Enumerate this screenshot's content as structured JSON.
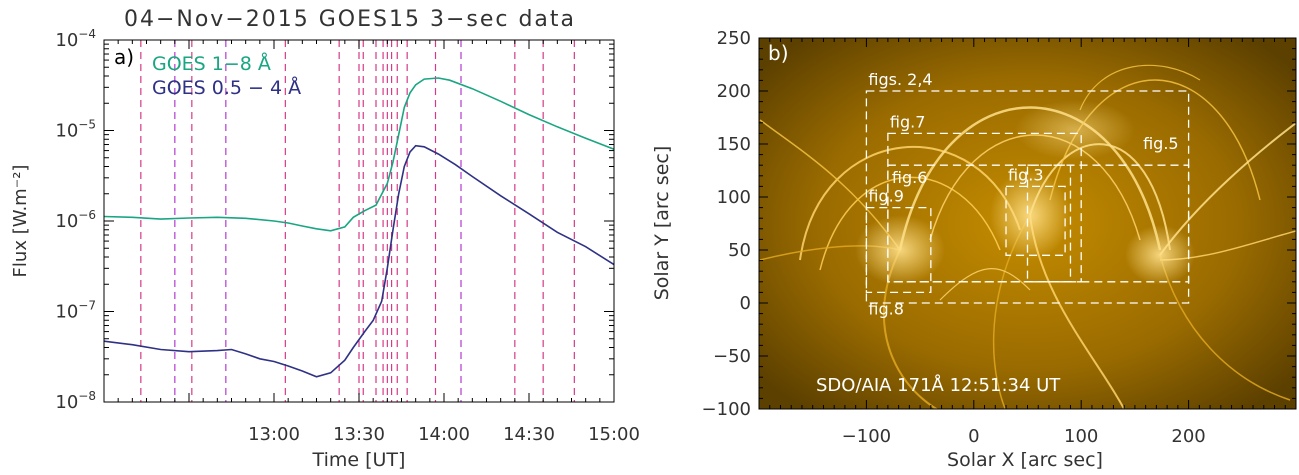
{
  "chart_data": [
    {
      "panel": "a",
      "type": "line",
      "title": "04−Nov−2015   GOES15 3−sec data",
      "panel_label": "a)",
      "xlabel": "Time [UT]",
      "ylabel": "Flux [W.m⁻²]",
      "x_unit": "minutes after 12:00 UT",
      "xlim": [
        0,
        180
      ],
      "ylim": [
        1e-08,
        0.0001
      ],
      "y_scale": "log",
      "x_ticks": [
        {
          "value": 60,
          "label": "13:00"
        },
        {
          "value": 90,
          "label": "13:30"
        },
        {
          "value": 120,
          "label": "14:00"
        },
        {
          "value": 150,
          "label": "14:30"
        },
        {
          "value": 180,
          "label": "15:00"
        }
      ],
      "y_ticks": [
        {
          "value": 1e-08,
          "base": "10",
          "exp": "−8"
        },
        {
          "value": 1e-07,
          "base": "10",
          "exp": "−7"
        },
        {
          "value": 1e-06,
          "base": "10",
          "exp": "−6"
        },
        {
          "value": 1e-05,
          "base": "10",
          "exp": "−5"
        },
        {
          "value": 0.0001,
          "base": "10",
          "exp": "−4"
        }
      ],
      "series": [
        {
          "name": "GOES  1−8 Å",
          "color": "#1aa583",
          "points": [
            [
              0,
              1.12e-06
            ],
            [
              10,
              1.1e-06
            ],
            [
              20,
              1.05e-06
            ],
            [
              30,
              1.08e-06
            ],
            [
              40,
              1.1e-06
            ],
            [
              50,
              1.07e-06
            ],
            [
              60,
              1e-06
            ],
            [
              65,
              9.5e-07
            ],
            [
              70,
              8.8e-07
            ],
            [
              75,
              8.2e-07
            ],
            [
              80,
              7.8e-07
            ],
            [
              85,
              8.6e-07
            ],
            [
              88,
              1.1e-06
            ],
            [
              92,
              1.3e-06
            ],
            [
              96,
              1.5e-06
            ],
            [
              100,
              2.6e-06
            ],
            [
              102,
              4.5e-06
            ],
            [
              104,
              9e-06
            ],
            [
              106,
              1.8e-05
            ],
            [
              108,
              2.6e-05
            ],
            [
              110,
              3.2e-05
            ],
            [
              113,
              3.7e-05
            ],
            [
              118,
              3.8e-05
            ],
            [
              122,
              3.6e-05
            ],
            [
              130,
              2.9e-05
            ],
            [
              140,
              2.1e-05
            ],
            [
              150,
              1.5e-05
            ],
            [
              160,
              1.1e-05
            ],
            [
              170,
              8.2e-06
            ],
            [
              180,
              6.2e-06
            ]
          ]
        },
        {
          "name": "GOES  0.5 − 4 Å",
          "color": "#2e3185",
          "points": [
            [
              0,
              4.7e-08
            ],
            [
              10,
              4.3e-08
            ],
            [
              20,
              3.8e-08
            ],
            [
              30,
              3.6e-08
            ],
            [
              40,
              3.7e-08
            ],
            [
              45,
              3.8e-08
            ],
            [
              50,
              3.4e-08
            ],
            [
              55,
              3e-08
            ],
            [
              60,
              2.8e-08
            ],
            [
              65,
              2.5e-08
            ],
            [
              70,
              2.2e-08
            ],
            [
              75,
              1.9e-08
            ],
            [
              80,
              2.1e-08
            ],
            [
              85,
              2.9e-08
            ],
            [
              88,
              4e-08
            ],
            [
              92,
              6e-08
            ],
            [
              95,
              8e-08
            ],
            [
              98,
              1.3e-07
            ],
            [
              100,
              3e-07
            ],
            [
              102,
              8e-07
            ],
            [
              104,
              2e-06
            ],
            [
              106,
              4e-06
            ],
            [
              108,
              5.8e-06
            ],
            [
              110,
              6.8e-06
            ],
            [
              113,
              6.6e-06
            ],
            [
              118,
              5.5e-06
            ],
            [
              124,
              4.2e-06
            ],
            [
              130,
              3.1e-06
            ],
            [
              140,
              1.9e-06
            ],
            [
              150,
              1.2e-06
            ],
            [
              160,
              7.5e-07
            ],
            [
              170,
              5.2e-07
            ],
            [
              180,
              3.3e-07
            ]
          ]
        }
      ],
      "vlines": [
        {
          "t": 13,
          "color": "#d63a86"
        },
        {
          "t": 25,
          "color": "#b33ad0"
        },
        {
          "t": 31,
          "color": "#d63a86"
        },
        {
          "t": 43,
          "color": "#b33ad0"
        },
        {
          "t": 64,
          "color": "#d63a86"
        },
        {
          "t": 83,
          "color": "#d63a86"
        },
        {
          "t": 90,
          "color": "#d63a86"
        },
        {
          "t": 91.5,
          "color": "#d63a86"
        },
        {
          "t": 96,
          "color": "#d63a86"
        },
        {
          "t": 98.5,
          "color": "#d63a86"
        },
        {
          "t": 100,
          "color": "#d63a86"
        },
        {
          "t": 101.5,
          "color": "#d63a86"
        },
        {
          "t": 103.5,
          "color": "#d63a86"
        },
        {
          "t": 107,
          "color": "#d63a86"
        },
        {
          "t": 117,
          "color": "#d63a86"
        },
        {
          "t": 126,
          "color": "#b33ad0"
        },
        {
          "t": 145,
          "color": "#d63a86"
        },
        {
          "t": 155,
          "color": "#d63a86"
        },
        {
          "t": 166,
          "color": "#d63a86"
        }
      ]
    },
    {
      "panel": "b",
      "type": "image",
      "panel_label": "b)",
      "xlabel": "Solar X [arc sec]",
      "ylabel": "Solar Y [arc sec]",
      "xlim": [
        -200,
        300
      ],
      "ylim": [
        -100,
        250
      ],
      "x_ticks": [
        -100,
        0,
        100,
        200
      ],
      "y_ticks": [
        -100,
        -50,
        0,
        50,
        100,
        150,
        200,
        250
      ],
      "caption": "SDO/AIA 171Å   12:51:34 UT",
      "image_colors": {
        "dark": "#3a2700",
        "mid": "#b88200",
        "bright": "#ffe08a"
      },
      "boxes": [
        {
          "label": "figs. 2,4",
          "x0": -100,
          "x1": 200,
          "y0": 0,
          "y1": 200,
          "label_pos": "above-left"
        },
        {
          "label": "fig.7",
          "x0": -80,
          "x1": 100,
          "y0": 20,
          "y1": 160,
          "label_pos": "above-left"
        },
        {
          "label": "fig.6",
          "x0": -80,
          "x1": 90,
          "y0": 20,
          "y1": 130,
          "label_pos": "inside-top-left"
        },
        {
          "label": "fig.5",
          "x0": 50,
          "x1": 200,
          "y0": 20,
          "y1": 130,
          "label_pos": "inside-top-right"
        },
        {
          "label": "fig.3",
          "x0": 30,
          "x1": 85,
          "y0": 45,
          "y1": 110,
          "label_pos": "above-left"
        },
        {
          "label": "fig.9",
          "x0": -100,
          "x1": -40,
          "y0": 10,
          "y1": 90,
          "label_pos": "above-left"
        },
        {
          "label": "fig.8",
          "x0": -100,
          "x1": -40,
          "y0": 10,
          "y1": 90,
          "label_pos": "below-left"
        }
      ]
    }
  ]
}
